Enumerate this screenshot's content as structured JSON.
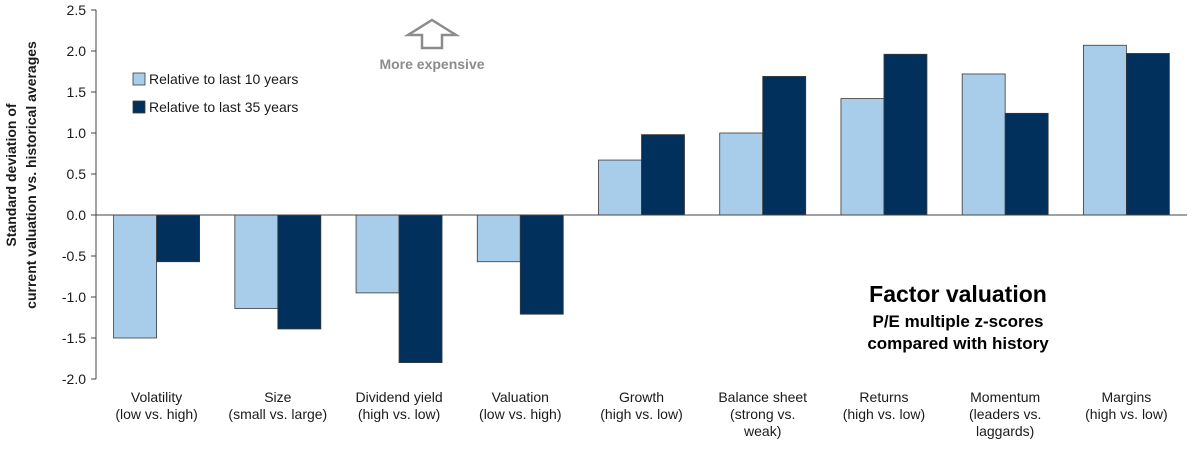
{
  "chart_data": {
    "type": "bar",
    "title": "Factor valuation",
    "subtitle_lines": [
      "P/E multiple z-scores",
      "compared with history"
    ],
    "ylabel_lines": [
      "Standard deviation of",
      "current valuation vs. historical averages"
    ],
    "ylim": [
      -2.0,
      2.5
    ],
    "yticks": [
      "-2.0",
      "-1.5",
      "-1.0",
      "-0.5",
      "0.0",
      "0.5",
      "1.0",
      "1.5",
      "2.0",
      "2.5"
    ],
    "grid": false,
    "legend_position": "upper-left",
    "annotation": "More expensive",
    "categories": [
      [
        "Volatility",
        "(low vs. high)"
      ],
      [
        "Size",
        "(small vs. large)"
      ],
      [
        "Dividend yield",
        "(high vs. low)"
      ],
      [
        "Valuation",
        "(low vs. high)"
      ],
      [
        "Growth",
        "(high vs. low)"
      ],
      [
        "Balance sheet",
        "(strong vs.",
        "weak)"
      ],
      [
        "Returns",
        "(high vs. low)"
      ],
      [
        "Momentum",
        "(leaders vs.",
        "laggards)"
      ],
      [
        "Margins",
        "(high vs. low)"
      ]
    ],
    "series": [
      {
        "name": "Relative to last 10 years",
        "color": "#a7cdeb",
        "values": [
          -1.5,
          -1.14,
          -0.95,
          -0.57,
          0.67,
          1.0,
          1.42,
          1.72,
          2.07
        ]
      },
      {
        "name": "Relative to last 35 years",
        "color": "#00305b",
        "values": [
          -0.57,
          -1.39,
          -1.8,
          -1.21,
          0.98,
          1.69,
          1.96,
          1.24,
          1.97
        ]
      }
    ]
  }
}
